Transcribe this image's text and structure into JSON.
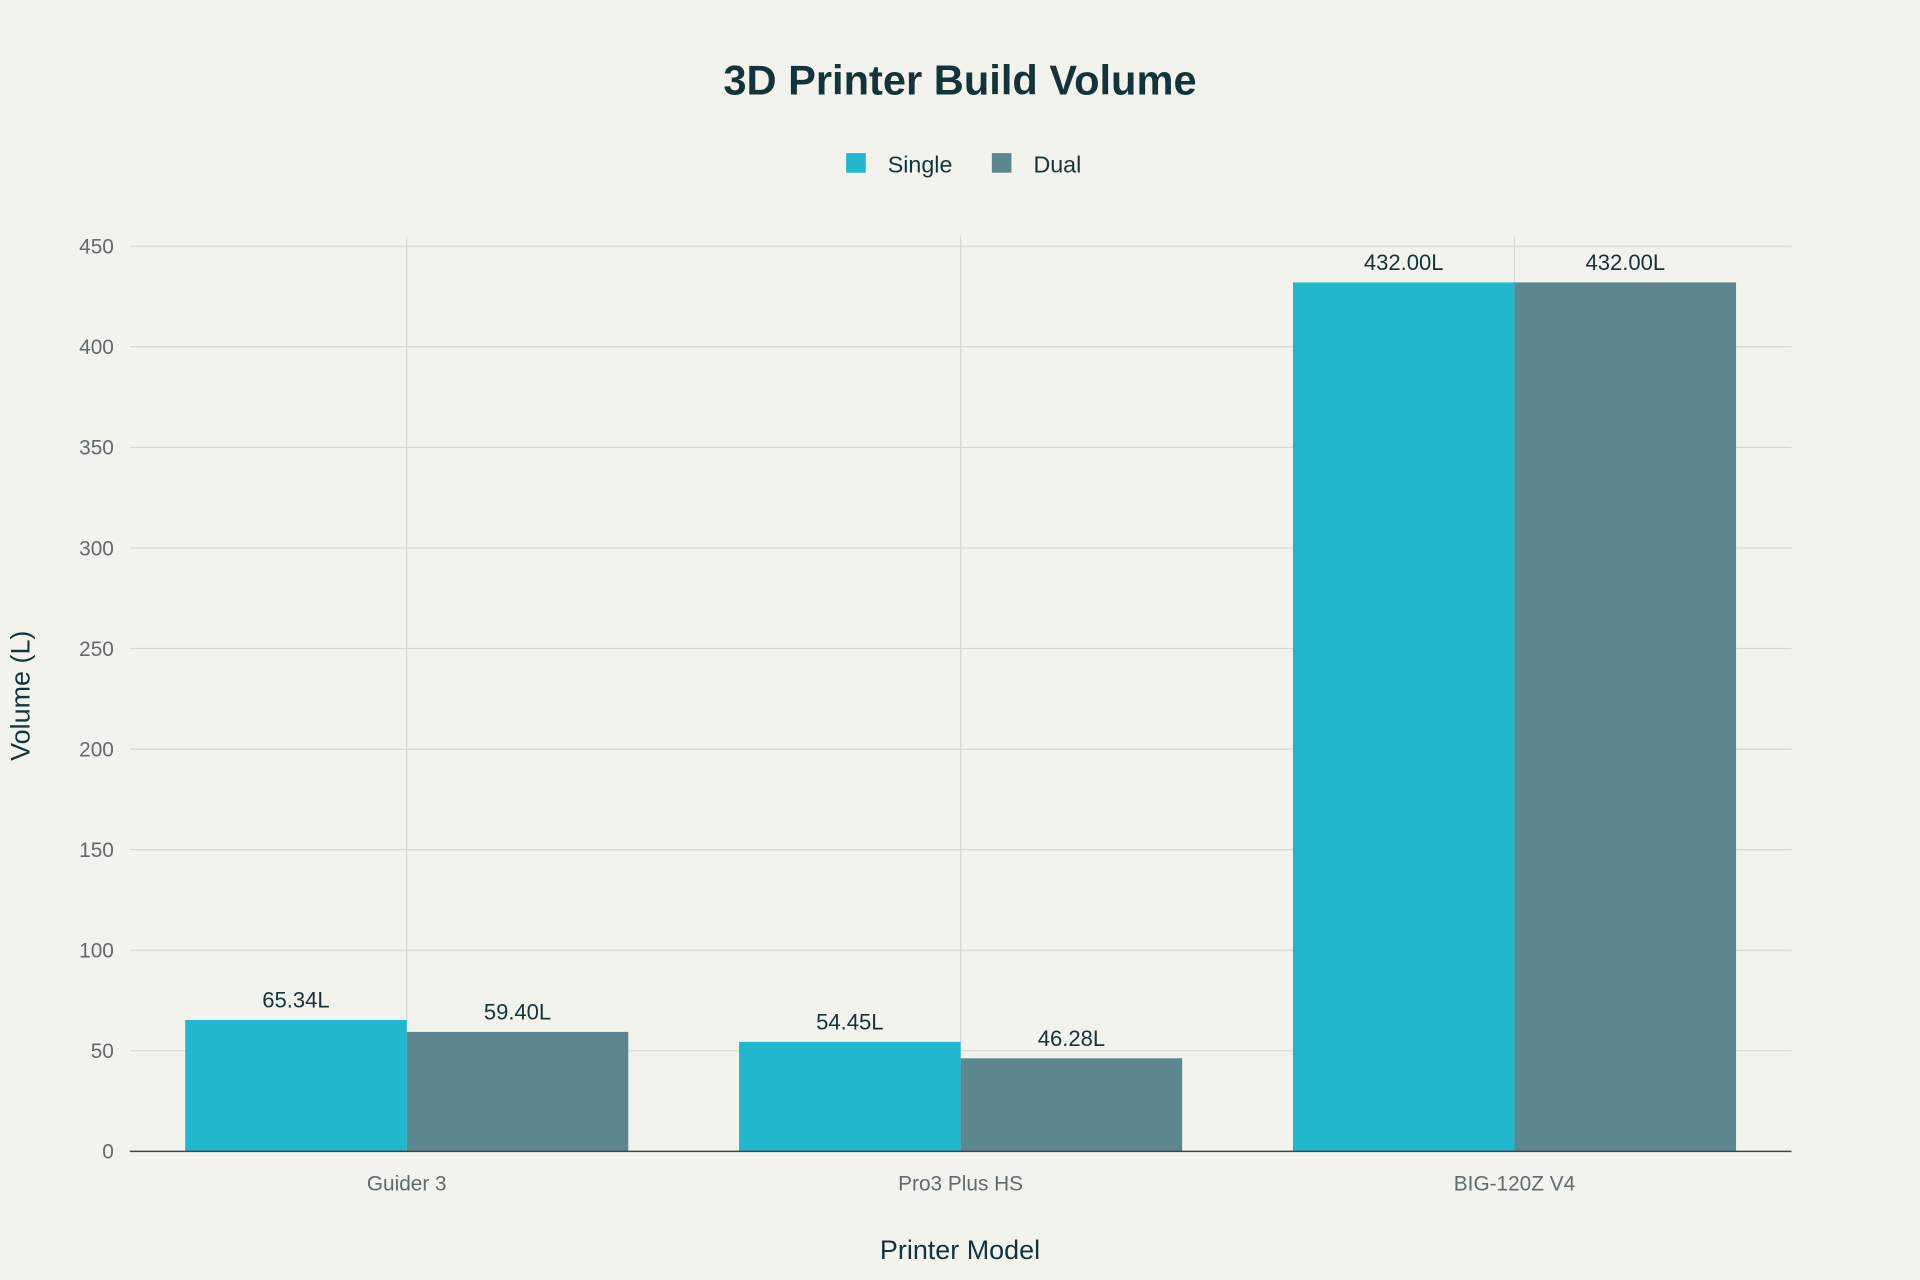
{
  "chart_data": {
    "type": "bar",
    "title": "3D Printer Build Volume",
    "xlabel": "Printer Model",
    "ylabel": "Volume (L)",
    "categories": [
      "Guider 3",
      "Pro3 Plus HS",
      "BIG-120Z V4"
    ],
    "series": [
      {
        "name": "Single",
        "values": [
          65.34,
          54.45,
          432.0
        ],
        "labels": [
          "65.34L",
          "54.45L",
          "432.00L"
        ],
        "color": "#21b8cd"
      },
      {
        "name": "Dual",
        "values": [
          59.4,
          46.28,
          432.0
        ],
        "labels": [
          "59.40L",
          "46.28L",
          "432.00L"
        ],
        "color": "#5d878f"
      }
    ],
    "ylim": [
      0,
      450
    ],
    "yticks": [
      0,
      50,
      100,
      150,
      200,
      250,
      300,
      350,
      400,
      450
    ],
    "grid": true,
    "legend": "top-center",
    "background": "#f3f3ee"
  }
}
